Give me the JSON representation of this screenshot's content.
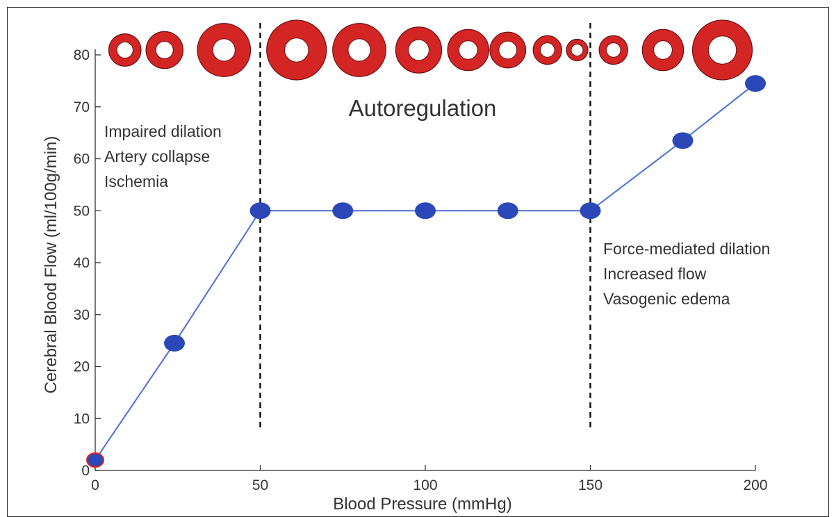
{
  "chart_data": {
    "type": "scatter",
    "title": "Autoregulation",
    "xlabel": "Blood Pressure (mmHg)",
    "ylabel": "Cerebral Blood Flow (ml/100g/min)",
    "xlim": [
      0,
      200
    ],
    "ylim": [
      0,
      80
    ],
    "x_ticks": [
      0,
      50,
      100,
      150,
      200
    ],
    "y_ticks": [
      0,
      10,
      20,
      30,
      40,
      50,
      60,
      70,
      80
    ],
    "grid": false,
    "series": [
      {
        "x": [
          0,
          24,
          50,
          75,
          100,
          125,
          150,
          178,
          200
        ],
        "y": [
          2,
          24.5,
          50,
          50,
          50,
          50,
          50,
          63.5,
          74.5
        ]
      }
    ],
    "boundaries": [
      50,
      150
    ],
    "annotations": {
      "left": [
        "Impaired dilation",
        "Artery collapse",
        "Ischemia"
      ],
      "right": [
        "Force-mediated dilation",
        "Increased flow",
        "Vasogenic edema"
      ]
    },
    "vessels": [
      {
        "x": 9,
        "outer": 0.54,
        "inner": 0.5
      },
      {
        "x": 21,
        "outer": 0.62,
        "inner": 0.47
      },
      {
        "x": 39,
        "outer": 0.89,
        "inner": 0.42
      },
      {
        "x": 61,
        "outer": 1.0,
        "inner": 0.4
      },
      {
        "x": 80,
        "outer": 0.89,
        "inner": 0.42
      },
      {
        "x": 98,
        "outer": 0.77,
        "inner": 0.45
      },
      {
        "x": 113,
        "outer": 0.69,
        "inner": 0.45
      },
      {
        "x": 125,
        "outer": 0.6,
        "inner": 0.5
      },
      {
        "x": 137,
        "outer": 0.48,
        "inner": 0.5
      },
      {
        "x": 146,
        "outer": 0.36,
        "inner": 0.55
      },
      {
        "x": 157,
        "outer": 0.48,
        "inner": 0.5
      },
      {
        "x": 172,
        "outer": 0.69,
        "inner": 0.45
      },
      {
        "x": 190,
        "outer": 1.0,
        "inner": 0.47
      }
    ],
    "colors": {
      "line": "#4a6fd6",
      "point": "#2c48b8",
      "first_point_edge": "#e02020",
      "vessel": "#d42525",
      "vessel_edge": "#6b1010",
      "axis": "#333333",
      "boundary": "#1a1a1a"
    }
  }
}
